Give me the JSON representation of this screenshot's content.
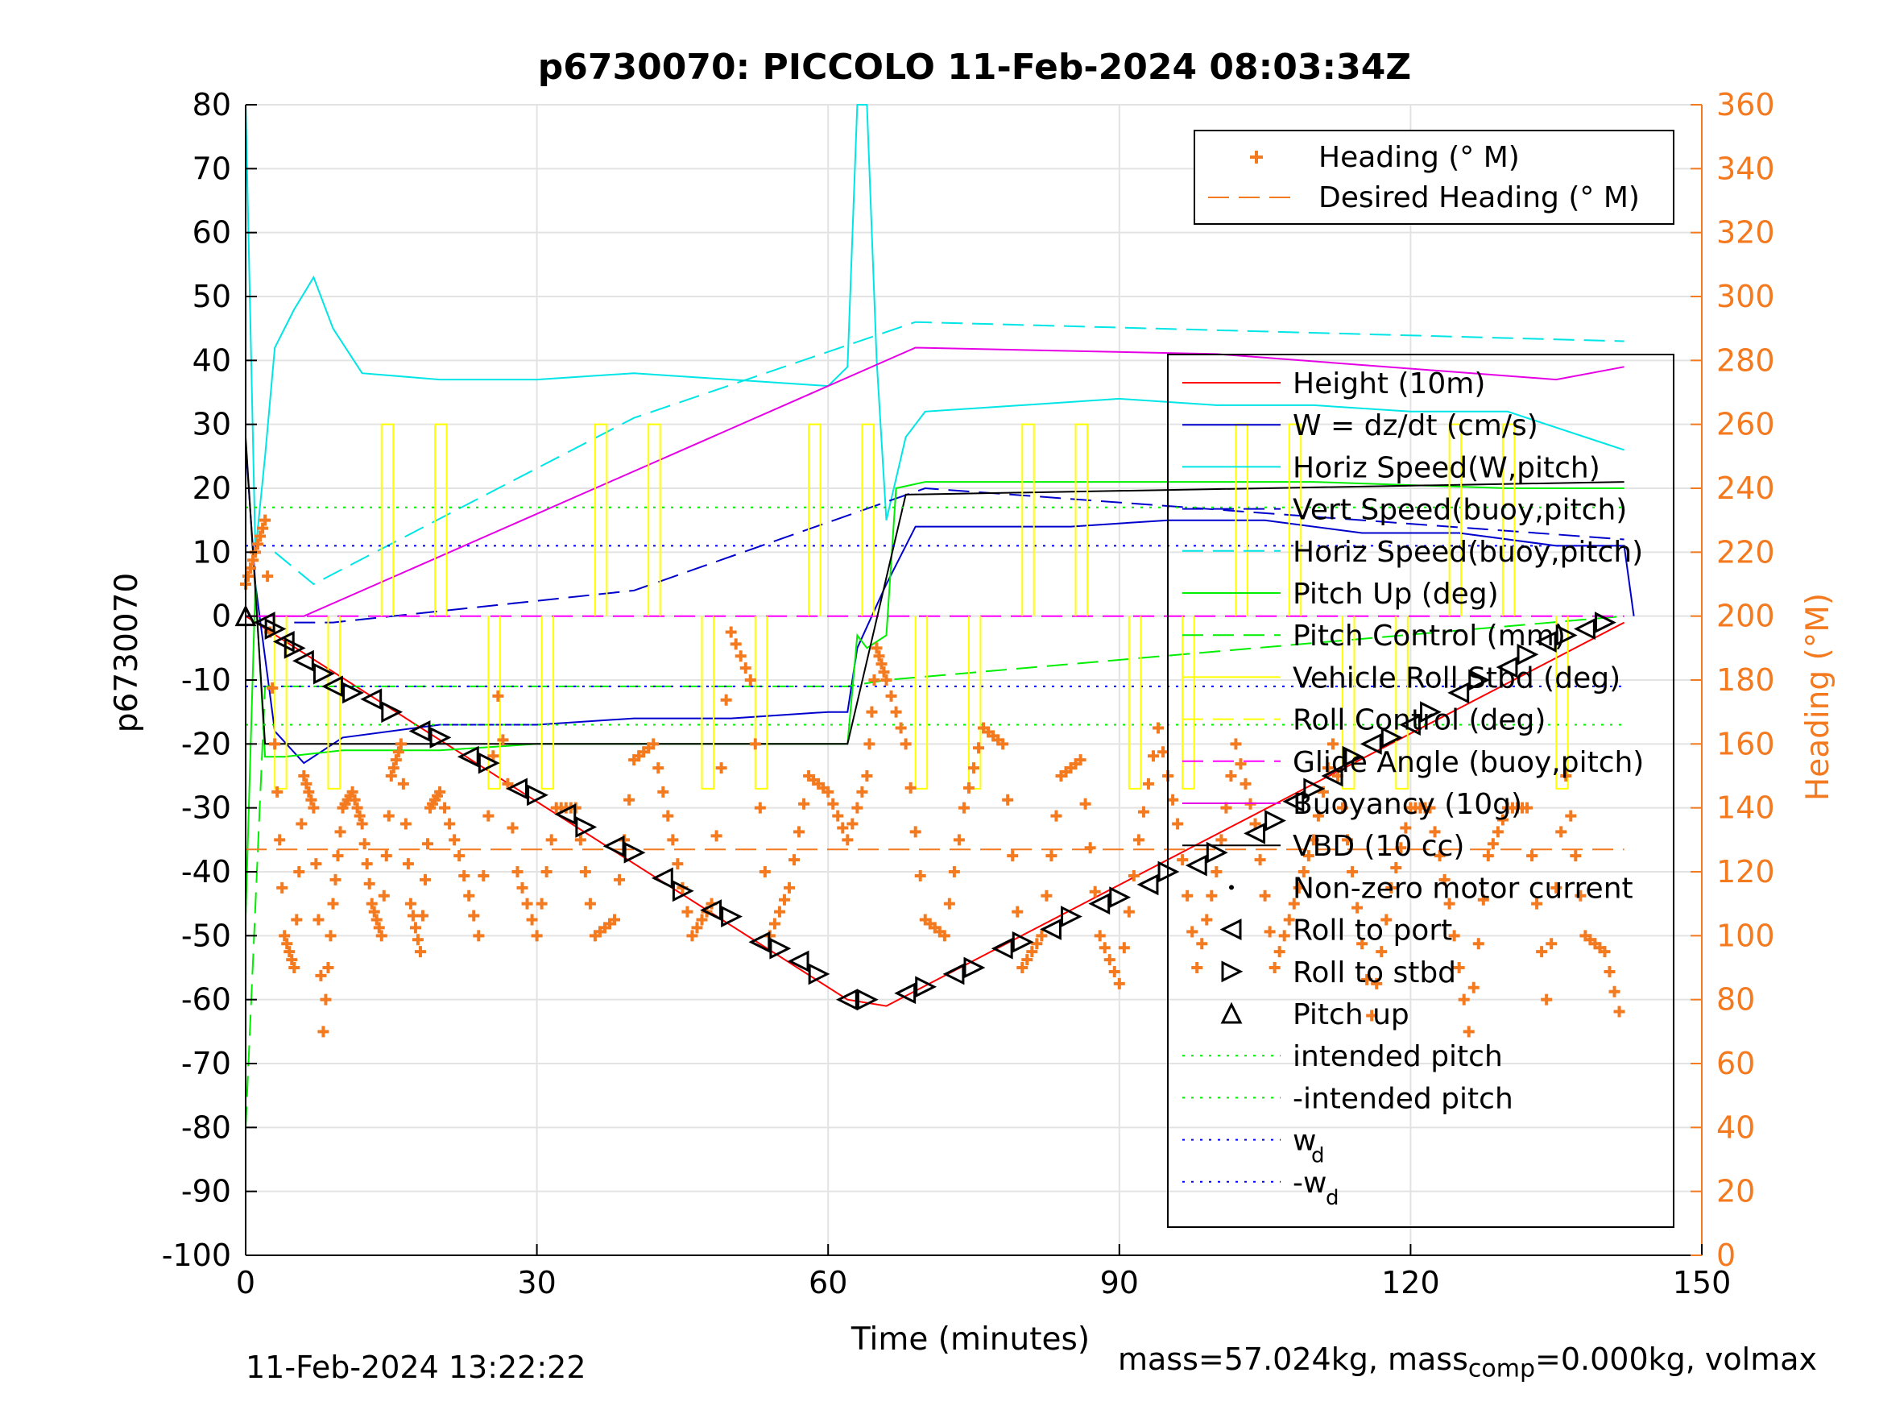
{
  "chart_data": {
    "type": "line",
    "title": "p6730070: PICCOLO 11-Feb-2024 08:03:34Z",
    "xlabel": "Time (minutes)",
    "ylabel_left": "p6730070",
    "ylabel_right": "Heading (°M)",
    "xlim": [
      0,
      150
    ],
    "ylim_left": [
      -100,
      80
    ],
    "ylim_right": [
      0,
      360
    ],
    "x_ticks": [
      0,
      30,
      60,
      90,
      120,
      150
    ],
    "y_ticks_left": [
      -100,
      -90,
      -80,
      -70,
      -60,
      -50,
      -40,
      -30,
      -20,
      -10,
      0,
      10,
      20,
      30,
      40,
      50,
      60,
      70,
      80
    ],
    "y_ticks_right": [
      0,
      20,
      40,
      60,
      80,
      100,
      120,
      140,
      160,
      180,
      200,
      220,
      240,
      260,
      280,
      300,
      320,
      340,
      360
    ],
    "x_tick_labels": [
      "0",
      "30",
      "60",
      "90",
      "120",
      "150"
    ],
    "y_tick_labels_left": [
      "-100",
      "-90",
      "-80",
      "-70",
      "-60",
      "-50",
      "-40",
      "-30",
      "-20",
      "-10",
      "0",
      "10",
      "20",
      "30",
      "40",
      "50",
      "60",
      "70",
      "80"
    ],
    "y_tick_labels_right": [
      "0",
      "20",
      "40",
      "60",
      "80",
      "100",
      "120",
      "140",
      "160",
      "180",
      "200",
      "220",
      "240",
      "260",
      "280",
      "300",
      "320",
      "340",
      "360"
    ],
    "grid": true,
    "colors": {
      "heading": "#f47a20",
      "height": "#ff0000",
      "w": "#0000cd",
      "horiz_speed": "#00e5e5",
      "pitch": "#00ee00",
      "roll": "#ffff00",
      "glide": "#ff00ff",
      "buoyancy": "#e600e6",
      "vbd": "#000000",
      "wd": "#0000ff"
    },
    "legend_heading": {
      "position": "top-right",
      "entries": [
        "Heading (° M)",
        "Desired Heading (° M)"
      ]
    },
    "legend_main": {
      "position": "right",
      "entries": [
        "Height (10m)",
        "W = dz/dt (cm/s)",
        "Horiz Speed(W,pitch)",
        "Vert Speed(buoy,pitch)",
        "Horiz Speed(buoy,pitch)",
        "Pitch Up (deg)",
        "Pitch Control (mm)",
        "Vehicle Roll Stbd (deg)",
        "Roll Control (deg)",
        "Glide Angle (buoy,pitch)",
        "Buoyancy (10g)",
        "VBD (10 cc)",
        "Non-zero motor current",
        "Roll to port",
        "Roll to stbd",
        "Pitch up",
        "intended pitch",
        "-intended pitch",
        "w",
        "-w"
      ],
      "subscript": "d"
    },
    "series": [
      {
        "name": "Height (10m)",
        "x": [
          0,
          62,
          66,
          142
        ],
        "y": [
          0,
          -60,
          -61,
          -1
        ]
      },
      {
        "name": "W = dz/dt (cm/s)",
        "x": [
          0,
          1,
          3,
          6,
          10,
          20,
          30,
          40,
          50,
          60,
          62,
          63,
          66,
          69,
          75,
          85,
          95,
          105,
          115,
          125,
          135,
          142,
          143
        ],
        "y": [
          27,
          5,
          -18,
          -23,
          -19,
          -17,
          -17,
          -16,
          -16,
          -15,
          -15,
          -5,
          5,
          14,
          14,
          14,
          15,
          15,
          13,
          13,
          11,
          11,
          0
        ]
      },
      {
        "name": "Horiz Speed(W,pitch)",
        "x": [
          0,
          1,
          2,
          3,
          5,
          7,
          9,
          12,
          20,
          30,
          40,
          50,
          60,
          62,
          63,
          64,
          65,
          66,
          68,
          70,
          80,
          90,
          100,
          110,
          120,
          130,
          140,
          142
        ],
        "y": [
          80,
          10,
          25,
          42,
          48,
          53,
          45,
          38,
          37,
          37,
          38,
          37,
          36,
          39,
          80,
          80,
          40,
          15,
          28,
          32,
          33,
          34,
          33,
          33,
          32,
          32,
          27,
          26
        ]
      },
      {
        "name": "Vert Speed(buoy,pitch)",
        "x": [
          5,
          9,
          40,
          70,
          142
        ],
        "y": [
          -1,
          -1,
          4,
          20,
          12
        ]
      },
      {
        "name": "Horiz Speed(buoy,pitch)",
        "x": [
          3,
          7,
          40,
          69,
          142
        ],
        "y": [
          10,
          5,
          31,
          46,
          43
        ]
      },
      {
        "name": "Pitch Up (deg)",
        "x": [
          0,
          1,
          2,
          4,
          10,
          20,
          30,
          40,
          50,
          62,
          63,
          64,
          66,
          67,
          70,
          90,
          110,
          130,
          142
        ],
        "y": [
          -47,
          5,
          -22,
          -22,
          -21,
          -21,
          -20,
          -20,
          -20,
          -20,
          -3,
          -5,
          -3,
          20,
          21,
          21,
          21,
          20,
          20
        ]
      },
      {
        "name": "Pitch Control (mm)",
        "x": [
          0,
          2,
          62,
          66,
          142
        ],
        "y": [
          -80,
          -11,
          -11,
          -10,
          0
        ]
      },
      {
        "name": "Buoyancy (10g)",
        "x": [
          0,
          6,
          69,
          100,
          135,
          142
        ],
        "y": [
          0,
          0,
          42,
          41,
          37,
          39
        ]
      },
      {
        "name": "Glide Angle (buoy,pitch)",
        "x": [
          0,
          142
        ],
        "y": [
          0,
          0
        ]
      },
      {
        "name": "VBD (10 cc)",
        "x": [
          0,
          2,
          62,
          68,
          142
        ],
        "y": [
          28,
          -20,
          -20,
          19,
          21
        ]
      },
      {
        "name": "intended pitch",
        "x": [
          0,
          142
        ],
        "y": [
          17,
          17
        ]
      },
      {
        "name": "-intended pitch",
        "x": [
          0,
          142
        ],
        "y": [
          -17,
          -17
        ]
      },
      {
        "name": "w_d",
        "x": [
          0,
          142
        ],
        "y": [
          11,
          11
        ]
      },
      {
        "name": "-w_d",
        "x": [
          0,
          142
        ],
        "y": [
          -11,
          -11
        ]
      },
      {
        "name": "Desired Heading (° M)",
        "x": [
          0,
          142
        ],
        "y_right": [
          127,
          127
        ]
      },
      {
        "name": "Heading (° M)",
        "x": [
          0,
          1,
          2,
          3,
          4,
          5,
          6,
          7,
          8,
          9,
          10,
          11,
          12,
          13,
          14,
          15,
          16,
          17,
          18,
          19,
          20,
          22,
          24,
          26,
          28,
          30,
          32,
          34,
          36,
          38,
          40,
          42,
          44,
          46,
          48,
          50,
          52,
          54,
          56,
          58,
          60,
          62,
          64,
          65,
          66,
          68,
          70,
          72,
          74,
          76,
          78,
          80,
          82,
          84,
          86,
          88,
          90,
          92,
          94,
          96,
          98,
          100,
          102,
          104,
          106,
          108,
          110,
          112,
          114,
          116,
          118,
          120,
          122,
          124,
          126,
          128,
          130,
          132,
          134,
          136,
          138,
          140,
          142
        ],
        "y_right": [
          210,
          220,
          230,
          160,
          100,
          90,
          150,
          140,
          70,
          110,
          140,
          145,
          135,
          110,
          100,
          150,
          160,
          110,
          95,
          140,
          145,
          125,
          100,
          175,
          120,
          100,
          140,
          140,
          100,
          105,
          155,
          160,
          130,
          100,
          110,
          195,
          180,
          100,
          115,
          150,
          145,
          130,
          150,
          190,
          180,
          160,
          105,
          100,
          140,
          165,
          160,
          90,
          100,
          150,
          155,
          100,
          85,
          130,
          165,
          135,
          90,
          120,
          160,
          135,
          90,
          110,
          130,
          160,
          120,
          75,
          115,
          140,
          140,
          110,
          70,
          125,
          140,
          140,
          80,
          150,
          100,
          95,
          70
        ]
      }
    ],
    "markers": {
      "pitch_up": {
        "x": [
          0
        ],
        "y": [
          0
        ]
      },
      "roll_port": {
        "x": [
          2,
          4,
          6,
          9,
          13,
          18,
          23,
          28,
          33,
          38,
          43,
          48,
          53,
          57,
          62,
          68,
          73,
          78,
          83,
          88,
          93,
          98,
          104,
          108,
          112,
          116,
          120,
          125,
          130,
          134,
          138
        ],
        "y": [
          -1,
          -4,
          -7,
          -11,
          -13,
          -18,
          -22,
          -27,
          -31,
          -36,
          -41,
          -46,
          -51,
          -54,
          -60,
          -59,
          -56,
          -52,
          -49,
          -45,
          -42,
          -39,
          -34,
          -29,
          -25,
          -20,
          -17,
          -12,
          -8,
          -4,
          -2
        ]
      },
      "roll_stbd": {
        "x": [
          3,
          5,
          8,
          11,
          15,
          20,
          25,
          30,
          35,
          40,
          45,
          50,
          55,
          59,
          64,
          70,
          75,
          80,
          85,
          90,
          95,
          100,
          106,
          110,
          114,
          118,
          122,
          127,
          132,
          136,
          140
        ],
        "y": [
          -2,
          -5,
          -9,
          -12,
          -15,
          -19,
          -23,
          -28,
          -33,
          -37,
          -43,
          -47,
          -52,
          -56,
          -60,
          -58,
          -55,
          -51,
          -47,
          -44,
          -40,
          -37,
          -32,
          -27,
          -22,
          -19,
          -15,
          -10,
          -6,
          -3,
          -1
        ]
      }
    },
    "timestamp": "11-Feb-2024 13:22:22",
    "footer_note": {
      "prefix": "mass=57.024kg, mass",
      "sub": "comp",
      "suffix": "=0.000kg, volmax"
    }
  }
}
